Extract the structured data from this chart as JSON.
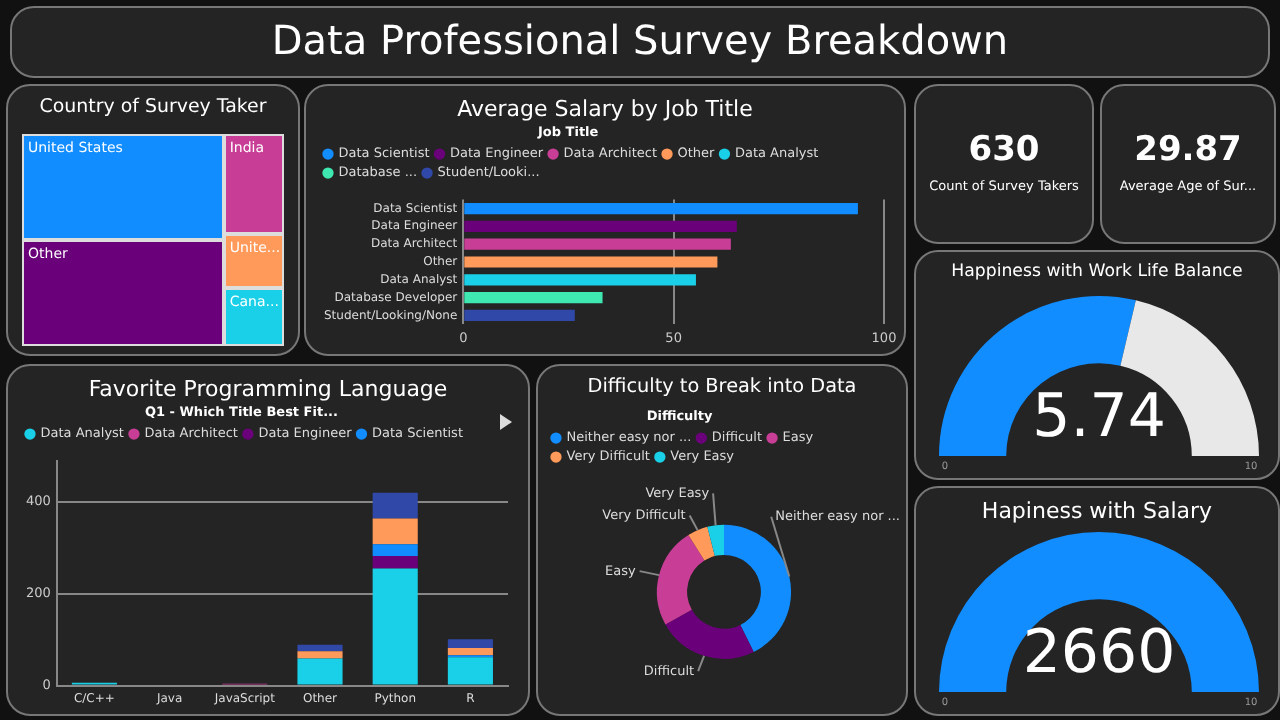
{
  "chart_data": [
    {
      "type": "other",
      "title": "Data Professional Survey Breakdown"
    },
    {
      "type": "other",
      "title": "Country of Survey Taker",
      "categories": [
        "United States",
        "Other",
        "India",
        "Unite...",
        "Cana..."
      ],
      "colors": [
        "#118dff",
        "#6b007b",
        "#c83d95",
        "#ff9a5a",
        "#1ad0e8"
      ]
    },
    {
      "type": "bar",
      "title": "Average Salary by Job Title",
      "orientation": "horizontal",
      "legend_title": "Job Title",
      "legend": "top",
      "categories": [
        "Data Scientist",
        "Data Engineer",
        "Data Architect",
        "Other",
        "Data Analyst",
        "Database Developer",
        "Student/Looking/None"
      ],
      "xlim": [
        0,
        100
      ],
      "xticks": [
        0,
        50,
        100
      ],
      "grid": "x",
      "series": [
        {
          "name": "Data Scientist",
          "color": "#118dff",
          "values": [
            93.8,
            null,
            null,
            null,
            null,
            null,
            null
          ]
        },
        {
          "name": "Data Engineer",
          "color": "#6b007b",
          "values": [
            null,
            65,
            null,
            null,
            null,
            null,
            null
          ]
        },
        {
          "name": "Data Architect",
          "color": "#c83d95",
          "values": [
            null,
            null,
            63.6,
            null,
            null,
            null,
            null
          ]
        },
        {
          "name": "Other",
          "color": "#ff9a5a",
          "values": [
            null,
            null,
            null,
            60.4,
            null,
            null,
            null
          ]
        },
        {
          "name": "Data Analyst",
          "color": "#1ad0e8",
          "values": [
            null,
            null,
            null,
            null,
            55.3,
            null,
            null
          ]
        },
        {
          "name": "Database ...",
          "color": "#3ee8b0",
          "values": [
            null,
            null,
            null,
            null,
            null,
            33.1,
            null
          ]
        },
        {
          "name": "Student/Looki...",
          "color": "#3049a8",
          "values": [
            null,
            null,
            null,
            null,
            null,
            null,
            26.5
          ]
        }
      ]
    },
    {
      "type": "other",
      "annotations": [
        "630",
        "Count of Survey Takers"
      ]
    },
    {
      "type": "other",
      "annotations": [
        "29.87",
        "Average Age of Sur..."
      ]
    },
    {
      "type": "donut",
      "title": "Happiness with Work Life Balance",
      "categories": [
        null,
        null
      ],
      "values": [
        57.4,
        42.6
      ],
      "colors": [
        "#118dff",
        "#e8e8e8"
      ],
      "legend": false,
      "annotations": [
        "5.74",
        "0",
        "10"
      ]
    },
    {
      "type": "pie",
      "title": "Hapiness with Salary",
      "categories": [
        null,
        null
      ],
      "values": [
        100,
        0
      ],
      "colors": [
        "#118dff",
        "#e8e8e8"
      ],
      "legend": false,
      "annotations": [
        "2660",
        "0",
        "10"
      ]
    },
    {
      "type": "bar",
      "title": "Favorite Programming Language",
      "stacked": true,
      "legend_title": "Q1 - Which Title Best Fit...",
      "legend": "top",
      "categories": [
        "C/C++",
        "Java",
        "JavaScript",
        "Other",
        "Python",
        "R"
      ],
      "ylim": [
        0,
        490
      ],
      "yticks": [
        0,
        200,
        400
      ],
      "grid": "y",
      "series": [
        {
          "name": "Data Analyst",
          "color": "#1ad0e8",
          "values": [
            6,
            0,
            0,
            59,
            255,
            62
          ]
        },
        {
          "name": "Data Architect",
          "color": "#c83d95",
          "values": [
            0,
            0,
            4,
            0,
            0,
            0
          ]
        },
        {
          "name": "Data Engineer",
          "color": "#6b007b",
          "values": [
            0,
            0,
            0,
            null,
            27,
            0
          ]
        },
        {
          "name": "Data Scientist",
          "color": "#118dff",
          "values": [
            0,
            0,
            0,
            0,
            26,
            4
          ]
        },
        {
          "color": "#ff9a5a",
          "values": [
            0,
            null,
            0,
            16,
            56,
            16
          ]
        },
        {
          "color": "#3049a8",
          "values": [
            0,
            0,
            0,
            14,
            56,
            19
          ]
        }
      ]
    },
    {
      "type": "donut",
      "title": "Difficulty to Break into Data",
      "legend_title": "Difficulty",
      "legend": "top",
      "categories": [
        "Neither easy nor ...",
        "Difficult",
        "Easy",
        "Very Difficult",
        "Very Easy"
      ],
      "values": [
        42.7,
        24.2,
        24.2,
        4.9,
        4.0
      ],
      "colors": [
        "#118dff",
        "#6b007b",
        "#c83d95",
        "#ff9a5a",
        "#1ad0e8"
      ]
    }
  ]
}
